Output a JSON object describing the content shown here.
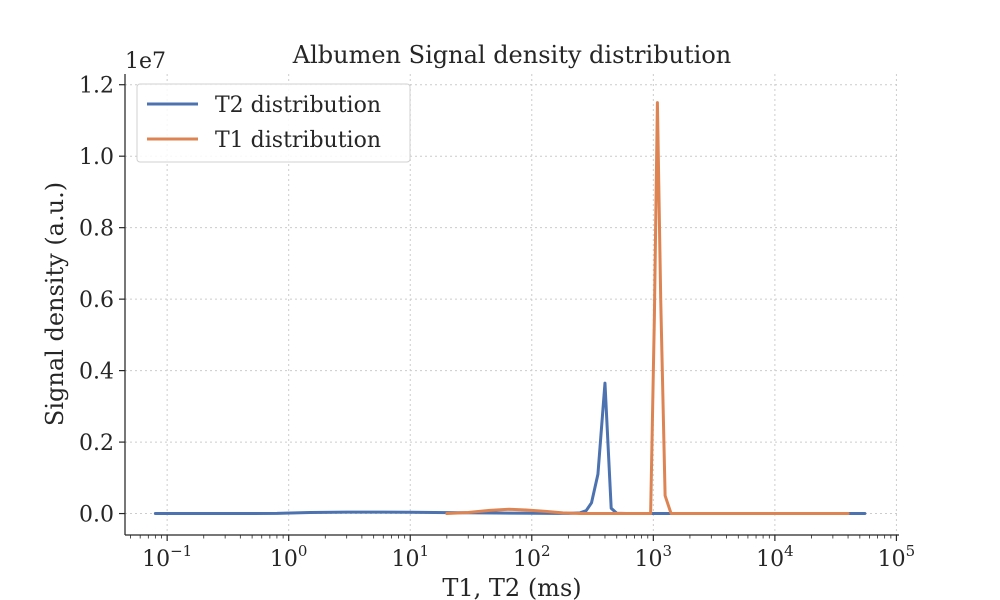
{
  "chart_data": {
    "type": "line",
    "title": "Albumen Signal density distribution",
    "xlabel": "T1, T2 (ms)",
    "ylabel": "Signal density (a.u.)",
    "x_scale": "log",
    "xlim": [
      0.045,
      105000
    ],
    "ylim": [
      -600000,
      12300000
    ],
    "y_offset_text": "1e7",
    "grid": true,
    "legend_position": "top-left",
    "x_ticks": [
      {
        "value": 0.1,
        "base": "10",
        "exp": "−1"
      },
      {
        "value": 1,
        "base": "10",
        "exp": "0"
      },
      {
        "value": 10,
        "base": "10",
        "exp": "1"
      },
      {
        "value": 100,
        "base": "10",
        "exp": "2"
      },
      {
        "value": 1000,
        "base": "10",
        "exp": "3"
      },
      {
        "value": 10000,
        "base": "10",
        "exp": "4"
      },
      {
        "value": 100000,
        "base": "10",
        "exp": "5"
      }
    ],
    "y_ticks": [
      {
        "value": 0,
        "label": "0.0"
      },
      {
        "value": 2000000,
        "label": "0.2"
      },
      {
        "value": 4000000,
        "label": "0.4"
      },
      {
        "value": 6000000,
        "label": "0.6"
      },
      {
        "value": 8000000,
        "label": "0.8"
      },
      {
        "value": 10000000,
        "label": "1.0"
      },
      {
        "value": 12000000,
        "label": "1.2"
      }
    ],
    "series": [
      {
        "name": "T2 distribution",
        "color": "#4c72b0",
        "x": [
          0.08,
          0.3,
          0.8,
          1.5,
          3,
          6,
          10,
          20,
          50,
          100,
          150,
          200,
          250,
          280,
          310,
          350,
          400,
          450,
          500,
          600,
          1000,
          5000,
          20000,
          55000
        ],
        "y": [
          0,
          0,
          5000,
          30000,
          40000,
          40000,
          35000,
          25000,
          15000,
          10000,
          5000,
          5000,
          20000,
          80000,
          300000,
          1100000,
          3650000,
          150000,
          10000,
          0,
          0,
          0,
          0,
          0
        ]
      },
      {
        "name": "T1 distribution",
        "color": "#dd8452",
        "x": [
          20,
          30,
          45,
          65,
          90,
          130,
          180,
          250,
          400,
          700,
          950,
          1020,
          1080,
          1150,
          1250,
          1400,
          2000,
          10000,
          40000
        ],
        "y": [
          0,
          30000,
          90000,
          120000,
          100000,
          60000,
          20000,
          0,
          0,
          0,
          0,
          5500000,
          11500000,
          6000000,
          500000,
          0,
          0,
          0,
          0
        ]
      }
    ]
  }
}
